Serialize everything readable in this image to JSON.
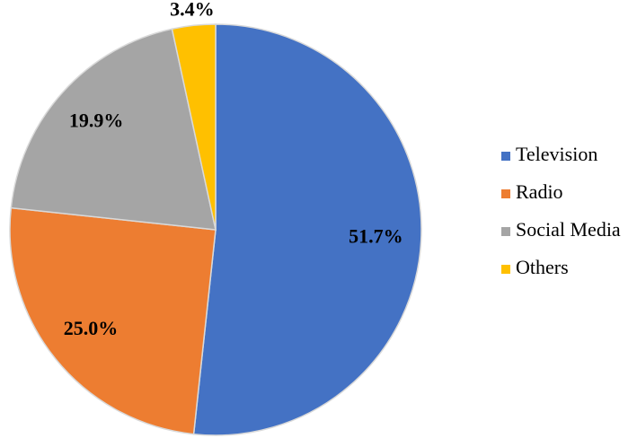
{
  "chart_data": {
    "type": "pie",
    "categories": [
      "Television",
      "Radio",
      "Social Media",
      "Others"
    ],
    "values": [
      51.7,
      25.0,
      19.9,
      3.4
    ],
    "value_labels": [
      "51.7%",
      "25.0%",
      "19.9%",
      "3.4%"
    ],
    "colors": [
      "#4472c4",
      "#ed7d31",
      "#a5a5a5",
      "#ffc000"
    ],
    "legend": "right"
  }
}
